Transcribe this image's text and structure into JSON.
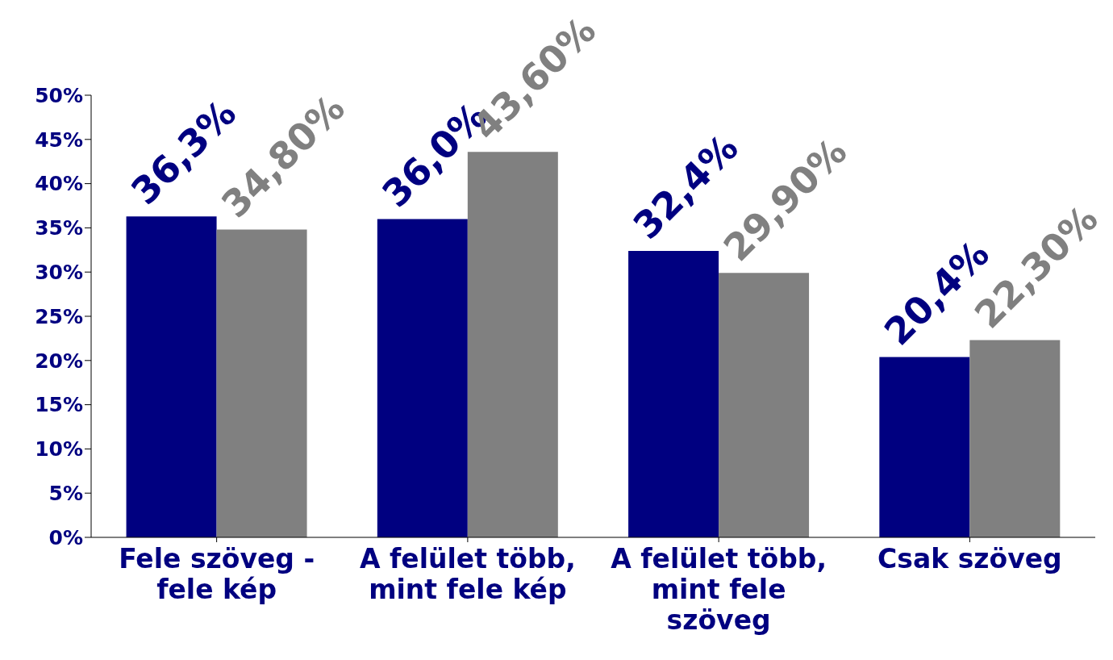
{
  "chart_data": {
    "type": "bar",
    "categories": [
      "Fele szöveg - fele kép",
      "A felület több, mint fele kép",
      "A felület több, mint fele szöveg",
      "Csak szöveg"
    ],
    "series": [
      {
        "color": "#000080",
        "values": [
          36.3,
          36.0,
          32.4,
          20.4
        ],
        "value_labels": [
          "36,3%",
          "36,0%",
          "32,4%",
          "20,4%"
        ]
      },
      {
        "color": "#808080",
        "values": [
          34.8,
          43.6,
          29.9,
          22.3
        ],
        "value_labels": [
          "34,80%",
          "43,60%",
          "29,90%",
          "22,30%"
        ]
      }
    ],
    "ylim": [
      0,
      50
    ],
    "yticks": [
      {
        "value": 0,
        "label": "0%"
      },
      {
        "value": 5,
        "label": "5%"
      },
      {
        "value": 10,
        "label": "10%"
      },
      {
        "value": 15,
        "label": "15%"
      },
      {
        "value": 20,
        "label": "20%"
      },
      {
        "value": 25,
        "label": "25%"
      },
      {
        "value": 30,
        "label": "30%"
      },
      {
        "value": 35,
        "label": "35%"
      },
      {
        "value": 40,
        "label": "40%"
      },
      {
        "value": 45,
        "label": "45%"
      },
      {
        "value": 50,
        "label": "50%"
      }
    ],
    "grid": false,
    "legend": false
  }
}
